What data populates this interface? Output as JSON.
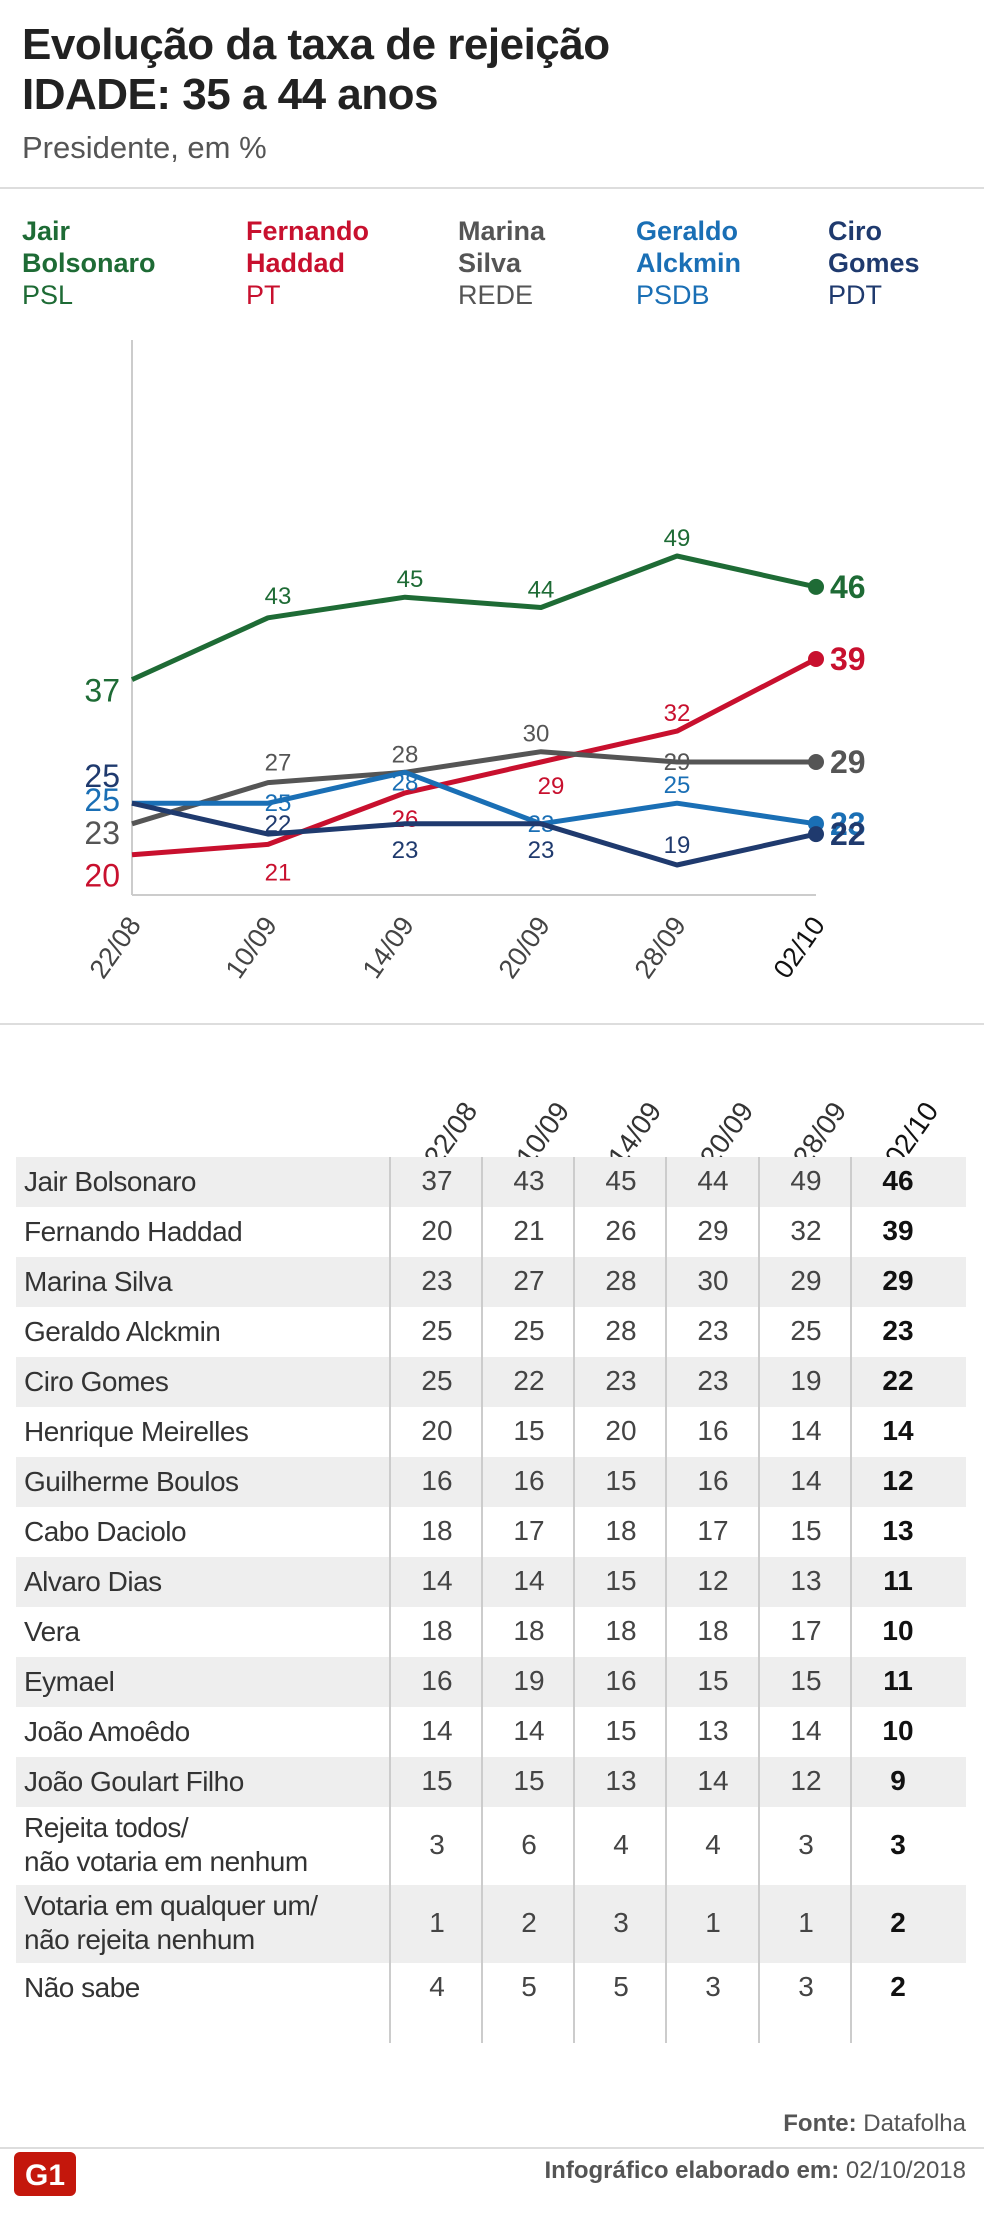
{
  "header": {
    "title_line1": "Evolução da taxa de rejeição",
    "title_line2": "IDADE: 35 a 44 anos",
    "subtitle": "Presidente, em %"
  },
  "legend": [
    {
      "name": "Jair\nBolsonaro",
      "party": "PSL",
      "color": "#1e6b35"
    },
    {
      "name": "Fernando\nHaddad",
      "party": "PT",
      "color": "#c8102e"
    },
    {
      "name": "Marina\nSilva",
      "party": "REDE",
      "color": "#555555"
    },
    {
      "name": "Geraldo\nAlckmin",
      "party": "PSDB",
      "color": "#1a6fb5"
    },
    {
      "name": "Ciro\nGomes",
      "party": "PDT",
      "color": "#1f3a6e"
    }
  ],
  "chart_data": {
    "type": "line",
    "categories": [
      "22/08",
      "10/09",
      "14/09",
      "20/09",
      "28/09",
      "02/10"
    ],
    "series": [
      {
        "name": "Jair Bolsonaro",
        "color": "#1e6b35",
        "values": [
          37,
          43,
          45,
          44,
          49,
          46
        ]
      },
      {
        "name": "Fernando Haddad",
        "color": "#c8102e",
        "values": [
          20,
          21,
          26,
          29,
          32,
          39
        ]
      },
      {
        "name": "Marina Silva",
        "color": "#555555",
        "values": [
          23,
          27,
          28,
          30,
          29,
          29
        ]
      },
      {
        "name": "Geraldo Alckmin",
        "color": "#1a6fb5",
        "values": [
          25,
          25,
          28,
          23,
          25,
          23
        ]
      },
      {
        "name": "Ciro Gomes",
        "color": "#1f3a6e",
        "values": [
          25,
          22,
          23,
          23,
          19,
          22
        ]
      }
    ],
    "grid": false
  },
  "table": {
    "columns": [
      "22/08",
      "10/09",
      "14/09",
      "20/09",
      "28/09",
      "02/10"
    ],
    "rows": [
      {
        "name": "Jair Bolsonaro",
        "values": [
          "37",
          "43",
          "45",
          "44",
          "49",
          "46"
        ]
      },
      {
        "name": "Fernando Haddad",
        "values": [
          "20",
          "21",
          "26",
          "29",
          "32",
          "39"
        ]
      },
      {
        "name": "Marina Silva",
        "values": [
          "23",
          "27",
          "28",
          "30",
          "29",
          "29"
        ]
      },
      {
        "name": "Geraldo Alckmin",
        "values": [
          "25",
          "25",
          "28",
          "23",
          "25",
          "23"
        ]
      },
      {
        "name": "Ciro Gomes",
        "values": [
          "25",
          "22",
          "23",
          "23",
          "19",
          "22"
        ]
      },
      {
        "name": "Henrique Meirelles",
        "values": [
          "20",
          "15",
          "20",
          "16",
          "14",
          "14"
        ]
      },
      {
        "name": "Guilherme Boulos",
        "values": [
          "16",
          "16",
          "15",
          "16",
          "14",
          "12"
        ]
      },
      {
        "name": "Cabo Daciolo",
        "values": [
          "18",
          "17",
          "18",
          "17",
          "15",
          "13"
        ]
      },
      {
        "name": "Alvaro Dias",
        "values": [
          "14",
          "14",
          "15",
          "12",
          "13",
          "11"
        ]
      },
      {
        "name": "Vera",
        "values": [
          "18",
          "18",
          "18",
          "18",
          "17",
          "10"
        ]
      },
      {
        "name": "Eymael",
        "values": [
          "16",
          "19",
          "16",
          "15",
          "15",
          "11"
        ]
      },
      {
        "name": "João Amoêdo",
        "values": [
          "14",
          "14",
          "15",
          "13",
          "14",
          "10"
        ]
      },
      {
        "name": "João Goulart Filho",
        "values": [
          "15",
          "15",
          "13",
          "14",
          "12",
          "9"
        ]
      },
      {
        "name": "Rejeita todos/\nnão votaria em nenhum",
        "values": [
          "3",
          "6",
          "4",
          "4",
          "3",
          "3"
        ]
      },
      {
        "name": "Votaria em qualquer um/\nnão rejeita nenhum",
        "values": [
          "1",
          "2",
          "3",
          "1",
          "1",
          "2"
        ]
      },
      {
        "name": "Não sabe",
        "values": [
          "4",
          "5",
          "5",
          "3",
          "3",
          "2"
        ]
      }
    ]
  },
  "footer": {
    "source_label": "Fonte:",
    "source": "Datafolha",
    "note_label": "Infográfico elaborado em:",
    "note_date": "02/10/2018",
    "logo_text": "G1"
  }
}
